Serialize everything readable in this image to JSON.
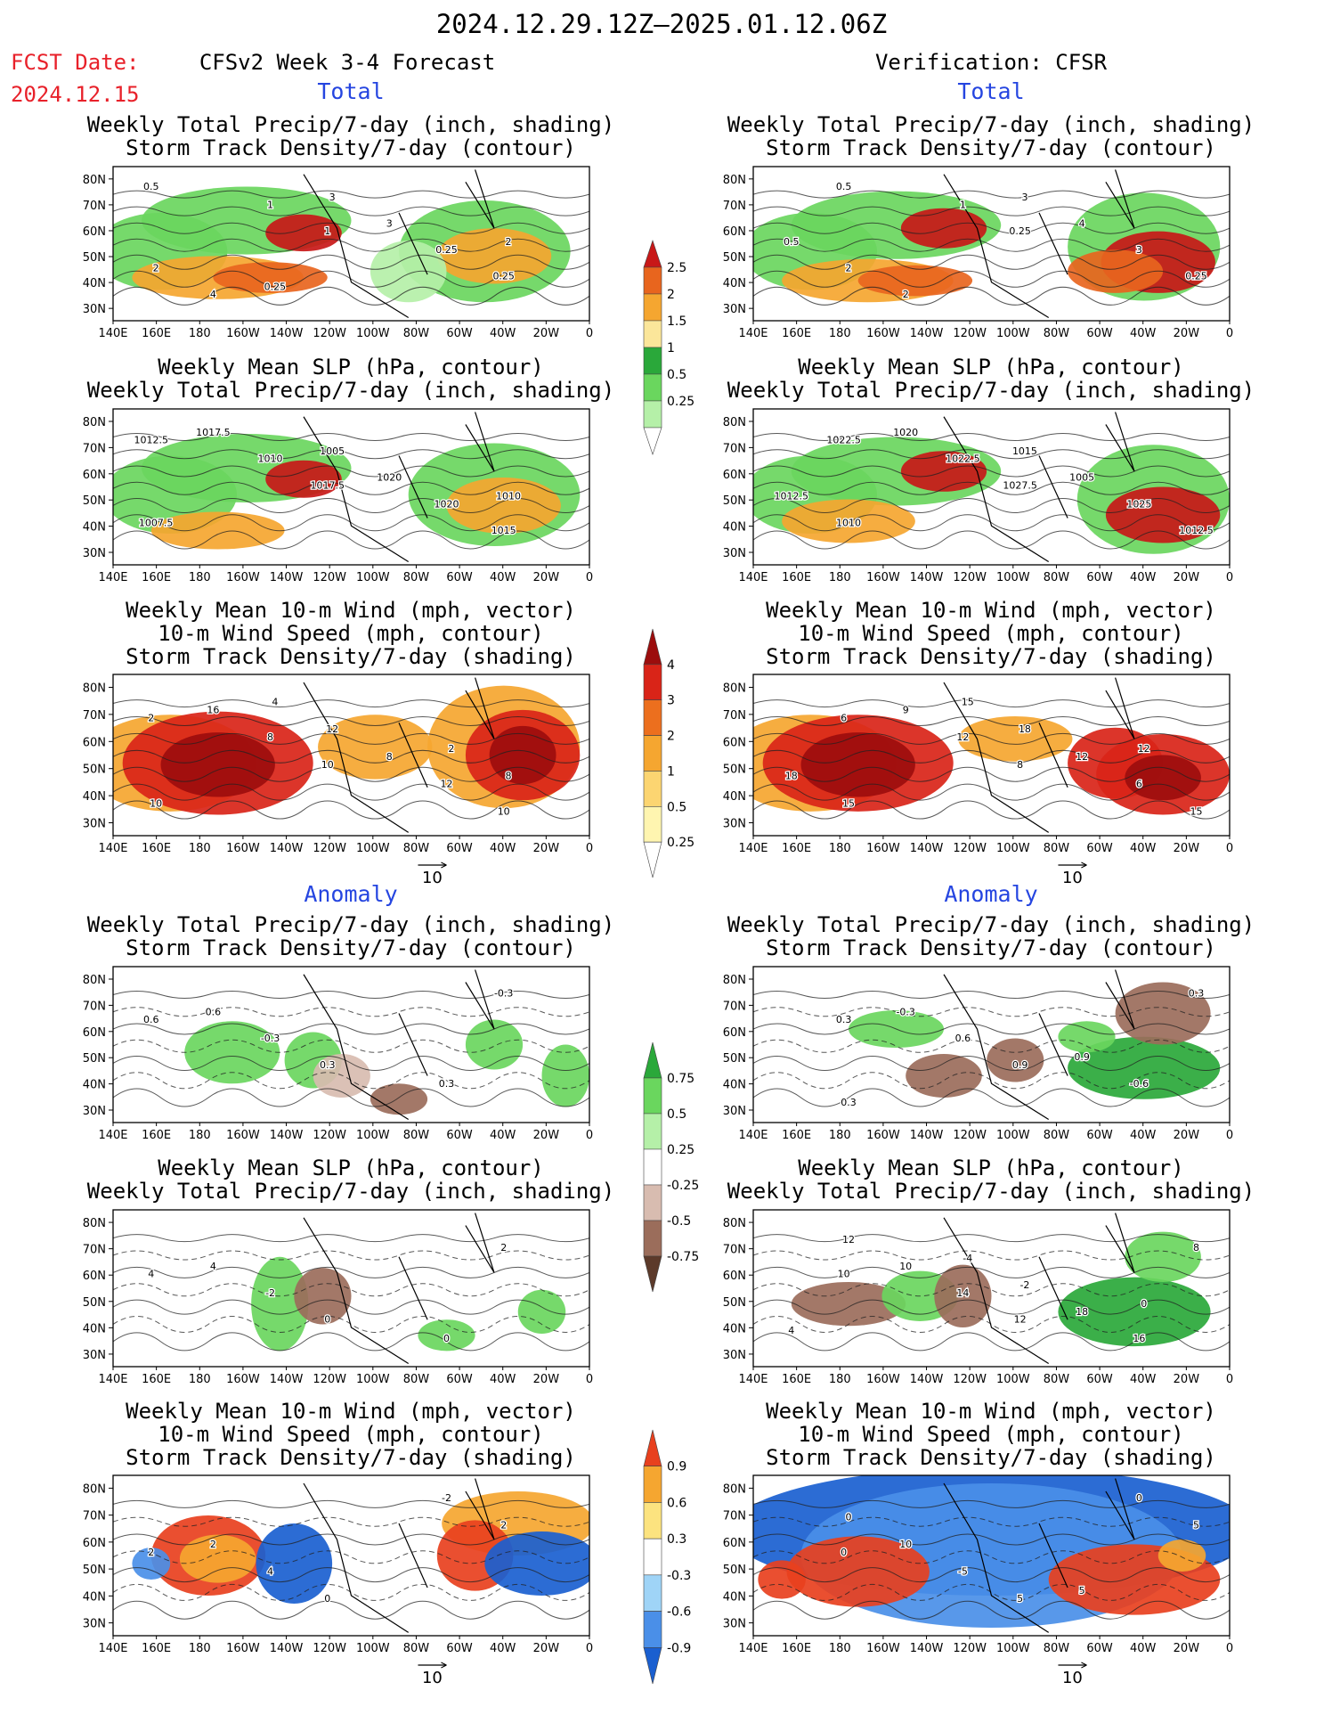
{
  "header": {
    "title": "2024.12.29.12Z—2025.01.12.06Z",
    "fcst_label": "FCST Date:",
    "fcst_date": "2024.12.15",
    "left_heading": "CFSv2 Week 3-4 Forecast",
    "right_heading": "Verification: CFSR"
  },
  "sections": {
    "total": "Total",
    "anomaly": "Anomaly"
  },
  "panel_titles": {
    "precip_storm": [
      "Weekly Total Precip/7-day (inch, shading)",
      "Storm Track Density/7-day (contour)"
    ],
    "slp_precip": [
      "Weekly Mean SLP (hPa, contour)",
      "Weekly Total Precip/7-day (inch, shading)"
    ],
    "wind_storm": [
      "Weekly Mean 10-m Wind (mph, vector)",
      "10-m Wind Speed (mph, contour)",
      "Storm Track Density/7-day (shading)"
    ]
  },
  "axes": {
    "lat_labels": [
      "80N",
      "70N",
      "60N",
      "50N",
      "40N",
      "30N"
    ],
    "lon_labels": [
      "140E",
      "160E",
      "180",
      "160W",
      "140W",
      "120W",
      "100W",
      "80W",
      "60W",
      "40W",
      "20W",
      "0"
    ]
  },
  "vector_ref": "10",
  "colorbars": {
    "precip_total": {
      "labels": [
        "2.5",
        "2",
        "1.5",
        "1",
        "0.5",
        "0.25"
      ],
      "colors": [
        "#ffffff",
        "#b5f0a8",
        "#6ad65e",
        "#2aa83a",
        "#fbe69a",
        "#f5a630",
        "#e8651e",
        "#c81818"
      ]
    },
    "storm_total": {
      "labels": [
        "4",
        "3",
        "2",
        "1",
        "0.5",
        "0.25"
      ],
      "colors": [
        "#ffffff",
        "#fff5b0",
        "#fcd571",
        "#f5a630",
        "#ec6f1e",
        "#d92418",
        "#9c0d0d"
      ]
    },
    "precip_anom": {
      "labels": [
        "0.75",
        "0.5",
        "0.25",
        "-0.25",
        "-0.5",
        "-0.75"
      ],
      "colors": [
        "#5c3a2a",
        "#9b6d5b",
        "#d8bcb0",
        "#ffffff",
        "#b5f0a8",
        "#6ad65e",
        "#2aa83a"
      ]
    },
    "storm_anom": {
      "labels": [
        "0.9",
        "0.6",
        "0.3",
        "-0.3",
        "-0.6",
        "-0.9"
      ],
      "colors": [
        "#1a5fd0",
        "#4a8fe8",
        "#9fd4f7",
        "#ffffff",
        "#fce37f",
        "#f5a630",
        "#e8401e"
      ]
    }
  },
  "panel_labels": {
    "p1": [
      "0.5",
      "1",
      "0.25",
      "1",
      "0.25",
      "4",
      "3",
      "2",
      "3",
      "2",
      "0.25"
    ],
    "p2": [
      "0.5",
      "0.25",
      "0.25",
      "1",
      "3",
      "2",
      "4",
      "2",
      "3",
      "0.5"
    ],
    "p3": [
      "1012.5",
      "1017.5",
      "1015",
      "1010",
      "1020",
      "1017.5",
      "1020",
      "1007.5",
      "1005",
      "1010"
    ],
    "p4": [
      "1022.5",
      "1027.5",
      "1012.5",
      "1022.5",
      "1025",
      "1020",
      "1005",
      "1010",
      "1015",
      "1012.5"
    ],
    "p5": [
      "2",
      "10",
      "10",
      "8",
      "12",
      "16",
      "8",
      "10",
      "12",
      "8",
      "4",
      "2"
    ],
    "p6": [
      "6",
      "8",
      "15",
      "12",
      "6",
      "9",
      "12",
      "15",
      "18",
      "18",
      "15",
      "12"
    ],
    "p7": [
      "0.6",
      "0.3",
      "-0.3",
      "-0.3",
      "0.3",
      "0.6"
    ],
    "p8": [
      "0.3",
      "0.9",
      "0.3",
      "0.6",
      "-0.6",
      "-0.3",
      "0.9",
      "0.3"
    ],
    "p9": [
      "4",
      "0",
      "2",
      "-2",
      "0",
      "4"
    ],
    "p10": [
      "10",
      "12",
      "8",
      "14",
      "16",
      "10",
      "18",
      "12",
      "-2",
      "4",
      "-4",
      "0"
    ],
    "p11": [
      "2",
      "0",
      "2",
      "4",
      "-2",
      "2"
    ],
    "p12": [
      "0",
      "5",
      "5",
      "-5",
      "0",
      "10",
      "5",
      "0"
    ]
  }
}
